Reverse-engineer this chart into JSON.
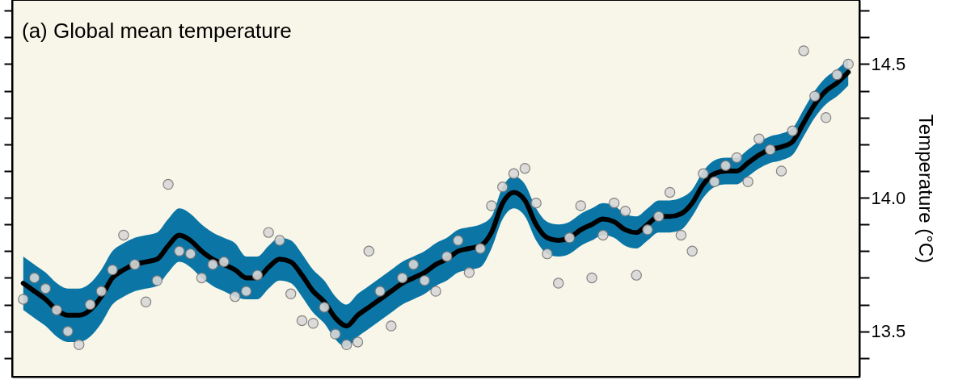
{
  "chart_data": {
    "type": "line",
    "title": "(a) Global mean temperature",
    "ylabel": "Temperature (°C)",
    "categories": [
      null,
      null,
      null,
      null,
      null,
      null,
      null,
      null,
      null,
      null,
      null,
      null,
      null,
      null,
      null,
      null,
      null,
      null,
      null,
      null,
      null,
      null,
      null,
      null,
      null,
      null,
      null,
      null,
      null,
      null,
      null,
      null,
      null,
      null,
      null,
      null,
      null,
      null,
      null,
      null,
      null,
      null,
      null,
      null,
      null,
      null,
      null,
      null,
      null,
      null,
      null,
      null,
      null,
      null,
      null,
      null,
      null,
      null,
      null,
      null,
      null,
      null,
      null,
      null,
      null,
      null,
      null,
      null,
      null,
      null,
      null,
      null,
      null,
      null,
      null
    ],
    "ylim": [
      13.33,
      14.74
    ],
    "yticks": [
      {
        "value": 13.4,
        "label": null
      },
      13.5,
      {
        "value": 13.6,
        "label": null
      },
      {
        "value": 13.7,
        "label": null
      },
      {
        "value": 13.8,
        "label": null
      },
      {
        "value": 13.9,
        "label": null
      },
      {
        "value": 14.0,
        "label": "14.0"
      },
      {
        "value": 14.1,
        "label": null
      },
      {
        "value": 14.2,
        "label": null
      },
      {
        "value": 14.3,
        "label": null
      },
      {
        "value": 14.4,
        "label": null
      },
      14.5,
      {
        "value": 14.6,
        "label": null
      },
      {
        "value": 14.7,
        "label": null
      }
    ],
    "tick_labels": "y",
    "grid": false,
    "series": [
      {
        "color": "#000000",
        "marker": "none",
        "line_style": "solid",
        "values": [
          13.68,
          13.65,
          13.62,
          13.58,
          13.56,
          13.56,
          13.58,
          13.63,
          13.7,
          13.73,
          13.75,
          13.76,
          13.77,
          13.82,
          13.86,
          13.84,
          13.8,
          13.77,
          13.75,
          13.73,
          13.7,
          13.7,
          13.74,
          13.77,
          13.76,
          13.71,
          13.65,
          13.61,
          13.55,
          13.52,
          13.56,
          13.59,
          13.62,
          13.65,
          13.68,
          13.7,
          13.72,
          13.75,
          13.77,
          13.8,
          13.81,
          13.82,
          13.87,
          13.98,
          14.02,
          13.99,
          13.9,
          13.85,
          13.84,
          13.85,
          13.88,
          13.9,
          13.92,
          13.91,
          13.88,
          13.87,
          13.9,
          13.93,
          13.93,
          13.94,
          13.98,
          14.05,
          14.09,
          14.1,
          14.1,
          14.13,
          14.16,
          14.18,
          14.19,
          14.21,
          14.28,
          14.35,
          14.4,
          14.43,
          14.47
        ],
        "lower": [
          13.58,
          13.55,
          13.52,
          13.48,
          13.46,
          13.46,
          13.48,
          13.53,
          13.6,
          13.63,
          13.65,
          13.66,
          13.67,
          13.72,
          13.76,
          13.74,
          13.7,
          13.67,
          13.65,
          13.63,
          13.62,
          13.62,
          13.66,
          13.69,
          13.68,
          13.63,
          13.57,
          13.53,
          13.47,
          13.44,
          13.48,
          13.51,
          13.54,
          13.57,
          13.6,
          13.62,
          13.64,
          13.67,
          13.69,
          13.72,
          13.73,
          13.74,
          13.81,
          13.92,
          13.96,
          13.93,
          13.84,
          13.79,
          13.78,
          13.79,
          13.82,
          13.84,
          13.86,
          13.85,
          13.82,
          13.81,
          13.84,
          13.87,
          13.87,
          13.88,
          13.93,
          14.0,
          14.04,
          14.05,
          14.05,
          14.08,
          14.11,
          14.13,
          14.14,
          14.16,
          14.23,
          14.3,
          14.35,
          14.38,
          14.42
        ],
        "upper": [
          13.78,
          13.75,
          13.72,
          13.68,
          13.66,
          13.66,
          13.68,
          13.73,
          13.8,
          13.83,
          13.85,
          13.86,
          13.87,
          13.92,
          13.96,
          13.94,
          13.9,
          13.87,
          13.85,
          13.83,
          13.78,
          13.78,
          13.82,
          13.85,
          13.84,
          13.79,
          13.73,
          13.69,
          13.63,
          13.6,
          13.64,
          13.67,
          13.7,
          13.73,
          13.76,
          13.78,
          13.8,
          13.83,
          13.85,
          13.88,
          13.89,
          13.9,
          13.93,
          14.04,
          14.08,
          14.05,
          13.96,
          13.91,
          13.9,
          13.91,
          13.94,
          13.96,
          13.98,
          13.97,
          13.94,
          13.93,
          13.96,
          13.99,
          13.99,
          14.0,
          14.03,
          14.1,
          14.14,
          14.15,
          14.15,
          14.18,
          14.21,
          14.23,
          14.24,
          14.26,
          14.33,
          14.4,
          14.45,
          14.48,
          14.52
        ]
      },
      {
        "type": "scatter",
        "color": "#d9d9d9",
        "marker": "circle",
        "values": [
          13.62,
          13.7,
          13.66,
          13.58,
          13.5,
          13.45,
          13.6,
          13.65,
          13.73,
          13.86,
          13.75,
          13.61,
          13.69,
          14.05,
          13.8,
          13.79,
          13.7,
          13.75,
          13.76,
          13.63,
          13.65,
          13.71,
          13.87,
          13.84,
          13.64,
          13.54,
          13.53,
          13.59,
          13.49,
          13.45,
          13.46,
          13.8,
          13.65,
          13.52,
          13.7,
          13.75,
          13.69,
          13.65,
          13.78,
          13.84,
          13.72,
          13.81,
          13.97,
          14.04,
          14.09,
          14.11,
          13.98,
          13.79,
          13.68,
          13.85,
          13.97,
          13.7,
          13.86,
          13.98,
          13.95,
          13.71,
          13.88,
          13.93,
          14.02,
          13.86,
          13.8,
          14.09,
          14.06,
          14.12,
          14.15,
          14.06,
          14.22,
          14.18,
          14.1,
          14.25,
          14.55,
          14.38,
          14.3,
          14.46,
          14.5
        ]
      }
    ]
  }
}
